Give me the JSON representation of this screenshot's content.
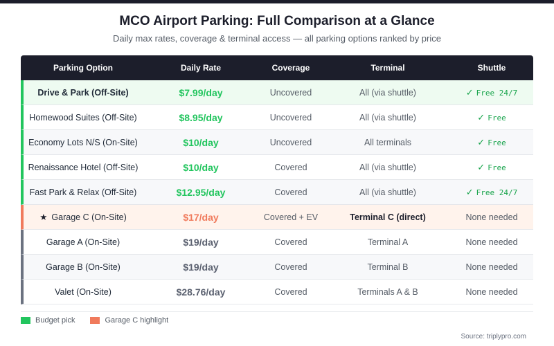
{
  "title": "MCO Airport Parking: Full Comparison at a Glance",
  "subtitle": "Daily max rates, coverage & terminal access — all parking options ranked by price",
  "colors": {
    "header_bg": "#1c1e2b",
    "budget": "#22c55e",
    "highlight": "#f07a5c",
    "standard": "#6b7280"
  },
  "table": {
    "headers": [
      "Parking Option",
      "Daily Rate",
      "Coverage",
      "Terminal",
      "Shuttle"
    ],
    "rows": [
      {
        "name": "Drive & Park (Off-Site)",
        "rate": "$7.99/day",
        "coverage": "Uncovered",
        "terminal": "All (via shuttle)",
        "shuttle": "Free 24/7",
        "shuttle_check": "✓",
        "category": "budget"
      },
      {
        "name": "Homewood Suites (Off-Site)",
        "rate": "$8.95/day",
        "coverage": "Uncovered",
        "terminal": "All (via shuttle)",
        "shuttle": "Free",
        "shuttle_check": "✓",
        "category": "budget"
      },
      {
        "name": "Economy Lots N/S (On-Site)",
        "rate": "$10/day",
        "coverage": "Uncovered",
        "terminal": "All terminals",
        "shuttle": "Free",
        "shuttle_check": "✓",
        "category": "budget"
      },
      {
        "name": "Renaissance Hotel (Off-Site)",
        "rate": "$10/day",
        "coverage": "Covered",
        "terminal": "All (via shuttle)",
        "shuttle": "Free",
        "shuttle_check": "✓",
        "category": "budget"
      },
      {
        "name": "Fast Park & Relax (Off-Site)",
        "rate": "$12.95/day",
        "coverage": "Covered",
        "terminal": "All (via shuttle)",
        "shuttle": "Free 24/7",
        "shuttle_check": "✓",
        "category": "budget"
      },
      {
        "name": "Garage C (On-Site)",
        "star": "★",
        "rate": "$17/day",
        "coverage": "Covered + EV",
        "terminal": "Terminal C (direct)",
        "shuttle": "None needed",
        "category": "highlight"
      },
      {
        "name": "Garage A (On-Site)",
        "rate": "$19/day",
        "coverage": "Covered",
        "terminal": "Terminal A",
        "shuttle": "None needed",
        "category": "standard"
      },
      {
        "name": "Garage B (On-Site)",
        "rate": "$19/day",
        "coverage": "Covered",
        "terminal": "Terminal B",
        "shuttle": "None needed",
        "category": "standard"
      },
      {
        "name": "Valet (On-Site)",
        "rate": "$28.76/day",
        "coverage": "Covered",
        "terminal": "Terminals A & B",
        "shuttle": "None needed",
        "category": "standard"
      }
    ]
  },
  "legend": [
    {
      "label": "Budget pick",
      "color": "#22c55e"
    },
    {
      "label": "Garage C highlight",
      "color": "#f07a5c"
    }
  ],
  "source": "Source: triplypro.com"
}
